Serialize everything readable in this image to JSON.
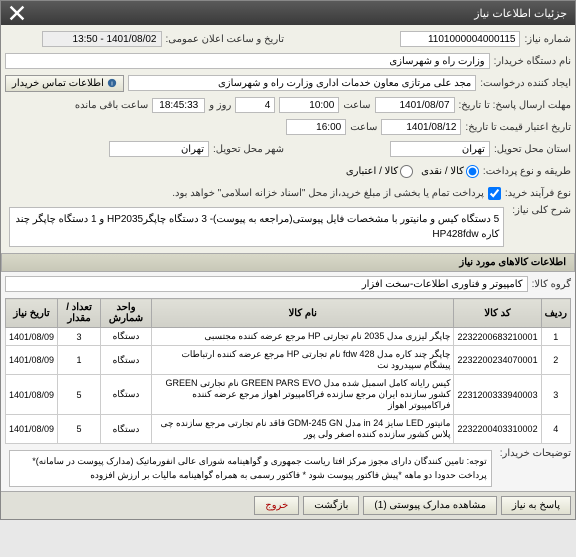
{
  "window": {
    "title": "جزئیات اطلاعات نیاز"
  },
  "form": {
    "niaz_no_label": "شماره نیاز:",
    "niaz_no": "1101000004000115",
    "public_time_label": "تاریخ و ساعت اعلان عمومی:",
    "public_time": "1401/08/02 - 13:50",
    "buyer_label": "نام دستگاه خریدار:",
    "buyer": "وزارت راه و شهرسازی",
    "requester_label": "ایجاد کننده درخواست:",
    "requester": "مجد علی  مرتازی معاون خدمات اداری وزارت راه و شهرسازی",
    "contact_btn": "اطلاعات تماس خریدار",
    "deadline_resp_label": "مهلت ارسال پاسخ: تا تاریخ:",
    "deadline_resp_date": "1401/08/07",
    "time_label": "ساعت",
    "deadline_resp_time": "10:00",
    "days_left": "4",
    "days_label": "روز و",
    "timer": "18:45:33",
    "remain_label": "ساعت باقی مانده",
    "valid_until_label": "تاریخ اعتبار قیمت تا تاریخ:",
    "valid_until_date": "1401/08/12",
    "valid_until_time": "16:00",
    "deliver_prov_label": "استان محل تحویل:",
    "deliver_prov": "تهران",
    "deliver_city_label": "شهر محل تحویل:",
    "deliver_city": "تهران",
    "pay_method_label": "طریقه و نوع پرداخت:",
    "pay_cash": "کالا / نقدی",
    "pay_credit": "کالا / اعتباری",
    "process_label": "نوع فرآیند خرید:",
    "process_note": "پرداخت تمام یا بخشی از مبلغ خرید،از محل \"اسناد خزانه اسلامی\" خواهد بود.",
    "summary_label": "شرح کلی نیاز:",
    "summary": "5 دستگاه کیس و مانیتور با مشخصات فایل پیوستی(مراجعه به پیوست)- 3 دستگاه چاپگرHP2035 و 1 دستگاه چاپگر چند کاره HP428fdw",
    "items_section": "اطلاعات کالاهای مورد نیاز",
    "group_label": "گروه کالا:",
    "group": "کامپیوتر و فناوری اطلاعات-سخت افزار",
    "buyer_notes_label": "توضیحات خریدار:",
    "buyer_notes": "توجه: تامین کنندگان دارای مجوز مرکز افتا ریاست جمهوری و گواهینامه شورای عالی انفورماتیک (مدارک پیوست در سامانه)* پرداخت حدودا دو ماهه  *پیش فاکتور پیوست شود * فاکتور رسمی به همراه گواهینامه مالیات بر ارزش افزوده"
  },
  "table": {
    "cols": [
      "ردیف",
      "کد کالا",
      "نام کالا",
      "واحد شمارش",
      "تعداد / مقدار",
      "تاریخ نیاز"
    ],
    "rows": [
      [
        "1",
        "2232200683210001",
        "چاپگر لیزری مدل 2035 نام تجارتی HP مرجع عرضه کننده مجتسبی",
        "دستگاه",
        "3",
        "1401/08/09"
      ],
      [
        "2",
        "2232200234070001",
        "چاپگر چند کاره مدل 428 fdw نام تجارتی HP مرجع عرضه کننده ارتباطات پیشگام سپیدرود نت",
        "دستگاه",
        "1",
        "1401/08/09"
      ],
      [
        "3",
        "2231200333940003",
        "کیس رایانه کامل اسمبل شده مدل GREEN PARS EVO نام تجارتی GREEN کشور سازنده ایران مرجع سازنده فراکامپیوتر اهواز مرجع عرضه کننده فراکامپیوتر اهواز",
        "دستگاه",
        "5",
        "1401/08/09"
      ],
      [
        "4",
        "2232200403310002",
        "مانیتور LED سایز 24 in مدل GDM-245 GN فاقد نام تجارتی مرجع سازنده چی پلاس کشور سازنده کننده اصغر ولی پور",
        "دستگاه",
        "5",
        "1401/08/09"
      ]
    ]
  },
  "footer": {
    "respond": "پاسخ به نیاز",
    "attachments": "مشاهده مدارک پیوستی (1)",
    "back": "بازگشت",
    "exit": "خروج"
  }
}
